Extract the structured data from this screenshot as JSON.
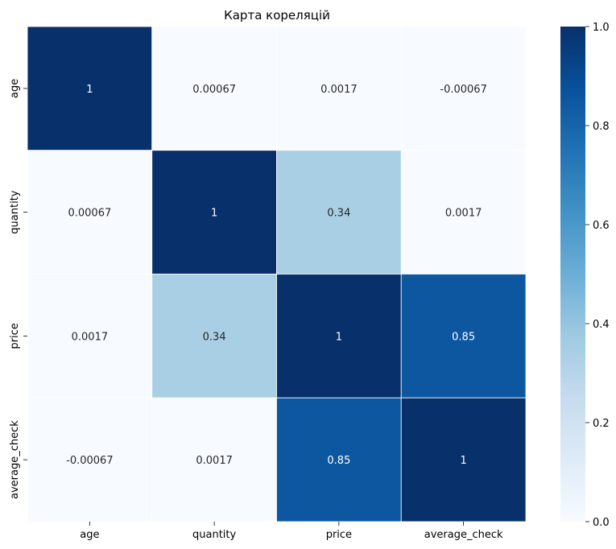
{
  "chart_data": {
    "type": "heatmap",
    "title": "Карта кореляцій",
    "x_categories": [
      "age",
      "quantity",
      "price",
      "average_check"
    ],
    "y_categories": [
      "age",
      "quantity",
      "price",
      "average_check"
    ],
    "values": [
      [
        1,
        0.00067,
        0.0017,
        -0.00067
      ],
      [
        0.00067,
        1,
        0.34,
        0.0017
      ],
      [
        0.0017,
        0.34,
        1,
        0.85
      ],
      [
        -0.00067,
        0.0017,
        0.85,
        1
      ]
    ],
    "cell_labels": [
      [
        "1",
        "0.00067",
        "0.0017",
        "-0.00067"
      ],
      [
        "0.00067",
        "1",
        "0.34",
        "0.0017"
      ],
      [
        "0.0017",
        "0.34",
        "1",
        "0.85"
      ],
      [
        "-0.00067",
        "0.0017",
        "0.85",
        "1"
      ]
    ],
    "colormap": "Blues",
    "vmin": 0.0,
    "vmax": 1.0,
    "colorbar": {
      "ticks": [
        0.0,
        0.2,
        0.4,
        0.6,
        0.8,
        1.0
      ],
      "tick_labels": [
        "0.0",
        "0.2",
        "0.4",
        "0.6",
        "0.8",
        "1.0"
      ]
    },
    "grid": false,
    "legend": "colorbar-right"
  }
}
